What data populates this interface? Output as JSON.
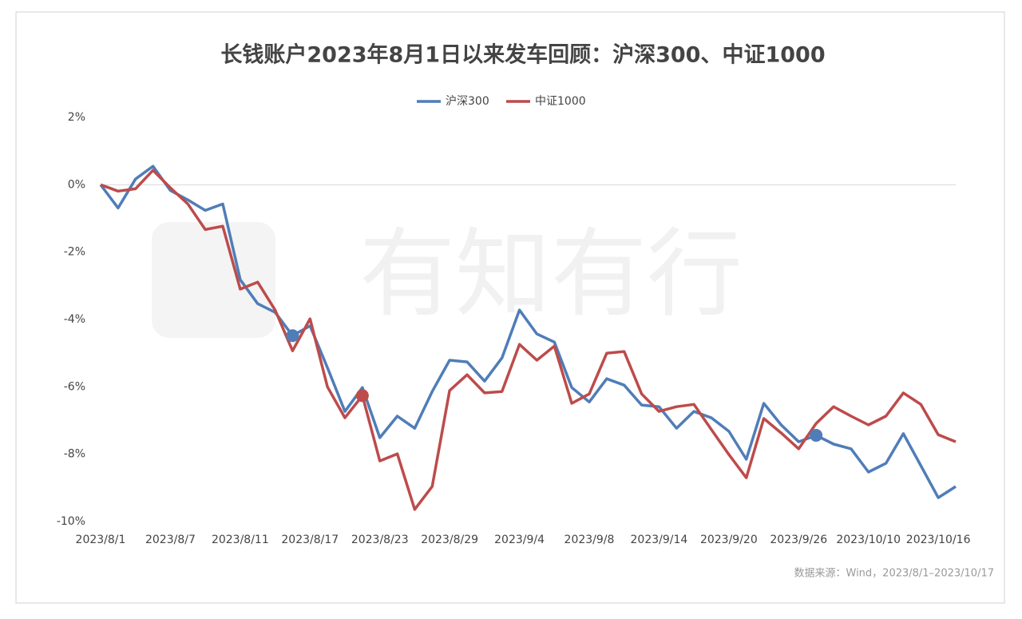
{
  "chart_data": {
    "type": "line",
    "title": "长钱账户2023年8月1日以来发车回顾：沪深300、中证1000",
    "watermark": "有知有行",
    "source": "数据来源：Wind，2023/8/1–2023/10/17",
    "categories": [
      "2023/8/1",
      null,
      null,
      null,
      "2023/8/7",
      null,
      null,
      null,
      "2023/8/11",
      null,
      null,
      null,
      "2023/8/17",
      null,
      null,
      null,
      "2023/8/23",
      null,
      null,
      null,
      "2023/8/29",
      null,
      null,
      null,
      "2023/9/4",
      null,
      null,
      null,
      "2023/9/8",
      null,
      null,
      null,
      "2023/9/14",
      null,
      null,
      null,
      "2023/9/20",
      null,
      null,
      null,
      "2023/9/26",
      null,
      null,
      null,
      "2023/10/10",
      null,
      null,
      null,
      "2023/10/16",
      null
    ],
    "series": [
      {
        "name": "沪深300",
        "color": "#4f7db8",
        "highlight": [
          11,
          41
        ],
        "values": [
          0,
          -0.69,
          0.17,
          0.55,
          -0.17,
          -0.45,
          -0.76,
          -0.57,
          -2.82,
          -3.53,
          -3.79,
          -4.48,
          -4.19,
          -5.43,
          -6.73,
          -6.02,
          -7.51,
          -6.87,
          -7.23,
          -6.14,
          -5.21,
          -5.26,
          -5.83,
          -5.14,
          -3.72,
          -4.43,
          -4.67,
          -6.02,
          -6.45,
          -5.76,
          -5.95,
          -6.54,
          -6.59,
          -7.23,
          -6.73,
          -6.92,
          -7.32,
          -8.15,
          -6.49,
          -7.13,
          -7.63,
          -7.44,
          -7.7,
          -7.84,
          -8.53,
          -8.27,
          -7.39,
          -8.34,
          -9.29,
          -8.96
        ]
      },
      {
        "name": "中证1000",
        "color": "#bd4b4b",
        "highlight": [
          15
        ],
        "values": [
          0,
          -0.19,
          -0.12,
          0.43,
          -0.09,
          -0.57,
          -1.33,
          -1.23,
          -3.1,
          -2.89,
          -3.72,
          -4.93,
          -3.98,
          -6.0,
          -6.92,
          -6.26,
          -8.2,
          -7.99,
          -9.64,
          -8.96,
          -6.11,
          -5.64,
          -6.18,
          -6.14,
          -4.74,
          -5.21,
          -4.79,
          -6.49,
          -6.21,
          -5.0,
          -4.95,
          -6.21,
          -6.73,
          -6.59,
          -6.52,
          -7.27,
          -8.01,
          -8.7,
          -6.94,
          -7.37,
          -7.84,
          -7.09,
          -6.59,
          -6.87,
          -7.13,
          -6.87,
          -6.18,
          -6.52,
          -7.42,
          -7.63
        ]
      }
    ],
    "ylim": [
      -10,
      2
    ],
    "yticks": [
      {
        "value": 2,
        "label": "2%"
      },
      {
        "value": 0,
        "label": "0%"
      },
      {
        "value": -2,
        "label": "-2%"
      },
      {
        "value": -4,
        "label": "-4%"
      },
      {
        "value": -6,
        "label": "-6%"
      },
      {
        "value": -8,
        "label": "-8%"
      },
      {
        "value": -10,
        "label": "-10%"
      }
    ],
    "zero_line": true,
    "legend": "top"
  }
}
